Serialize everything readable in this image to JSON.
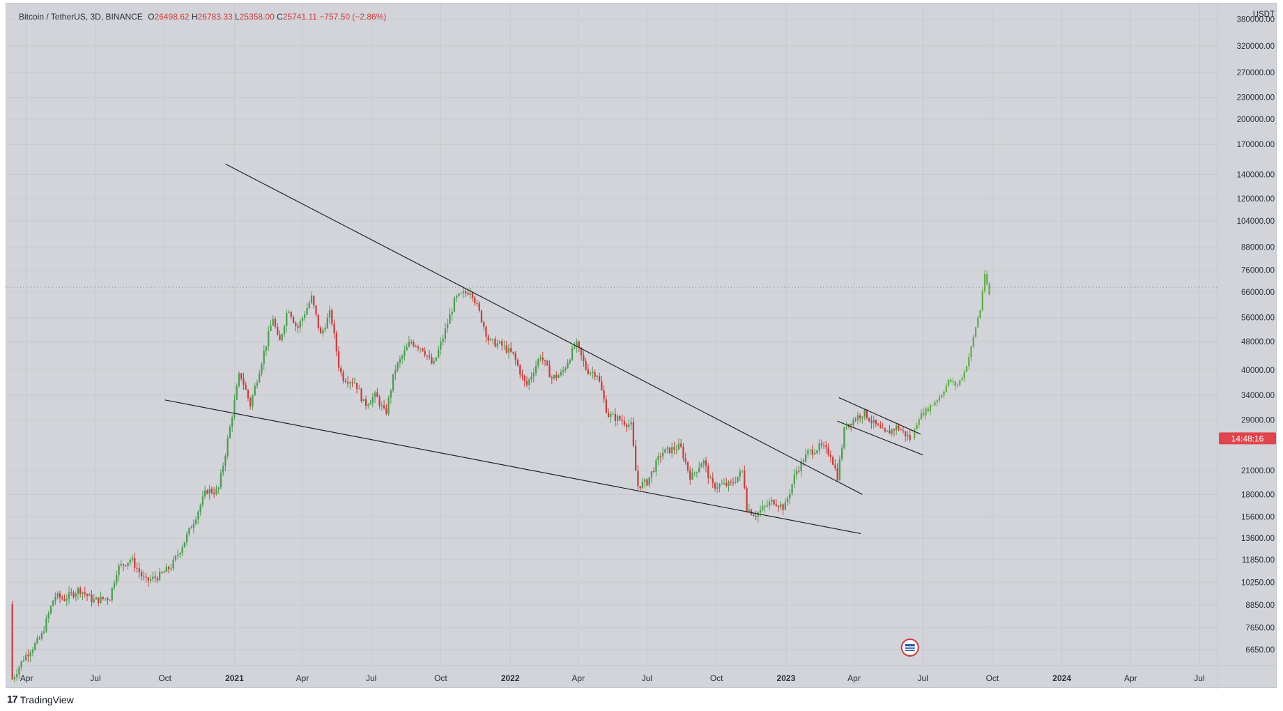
{
  "legend": {
    "symbol": "Bitcoin / TetherUS, 3D, BINANCE",
    "open_label": "O",
    "open": "26498.62",
    "high_label": "H",
    "high": "26783.33",
    "low_label": "L",
    "low": "25358.00",
    "close_label": "C",
    "close": "25741.11",
    "change": "−757.50 (−2.86%)"
  },
  "footer": {
    "brand": "TradingView",
    "logo_glyph": "17"
  },
  "colors": {
    "up": "#4a9e4f",
    "down": "#d23a3a",
    "projection": "#5fae47",
    "background": "#d2d4d9",
    "countdown_bg": "#e0454b"
  },
  "chart_data": {
    "type": "candlestick",
    "title": "Bitcoin / TetherUS, 3D, BINANCE",
    "currency_label": "USDT",
    "y_scale": "log",
    "y_ticks": [
      "380000.00",
      "320000.00",
      "270000.00",
      "230000.00",
      "200000.00",
      "170000.00",
      "140000.00",
      "120000.00",
      "104000.00",
      "88000.00",
      "76000.00",
      "66000.00",
      "56000.00",
      "48000.00",
      "40000.00",
      "34000.00",
      "29000.00",
      "21000.00",
      "18000.00",
      "15600.00",
      "13600.00",
      "11850.00",
      "10250.00",
      "8850.00",
      "7650.00",
      "6650.00"
    ],
    "ylim": [
      6000,
      420000
    ],
    "x_ticks": [
      "Apr",
      "Jul",
      "Oct",
      "2021",
      "Apr",
      "Jul",
      "Oct",
      "2022",
      "Apr",
      "Jul",
      "Oct",
      "2023",
      "Apr",
      "Jul",
      "Oct",
      "2024",
      "Apr",
      "Jul"
    ],
    "x_tick_dates": [
      "2020-04-01",
      "2020-07-01",
      "2020-10-01",
      "2021-01-01",
      "2021-04-01",
      "2021-07-01",
      "2021-10-01",
      "2022-01-01",
      "2022-04-01",
      "2022-07-01",
      "2022-10-01",
      "2023-01-01",
      "2023-04-01",
      "2023-07-01",
      "2023-10-01",
      "2024-01-01",
      "2024-04-01",
      "2024-07-01"
    ],
    "xlim": [
      "2020-03-05",
      "2024-07-25"
    ],
    "last_price": 25741.11,
    "countdown": "14:48:16",
    "current_price_line": 68000,
    "price_path": [
      [
        "2020-03-10",
        8900
      ],
      [
        "2020-03-13",
        5500
      ],
      [
        "2020-03-28",
        6300
      ],
      [
        "2020-04-20",
        7200
      ],
      [
        "2020-05-08",
        9400
      ],
      [
        "2020-05-20",
        9200
      ],
      [
        "2020-06-10",
        9800
      ],
      [
        "2020-06-28",
        9100
      ],
      [
        "2020-07-20",
        9300
      ],
      [
        "2020-07-30",
        11200
      ],
      [
        "2020-08-17",
        11900
      ],
      [
        "2020-09-05",
        10300
      ],
      [
        "2020-09-25",
        10700
      ],
      [
        "2020-10-10",
        11400
      ],
      [
        "2020-10-25",
        13100
      ],
      [
        "2020-11-10",
        15500
      ],
      [
        "2020-11-25",
        18500
      ],
      [
        "2020-12-10",
        18300
      ],
      [
        "2020-12-20",
        23500
      ],
      [
        "2021-01-08",
        39500
      ],
      [
        "2021-01-22",
        32000
      ],
      [
        "2021-02-08",
        44000
      ],
      [
        "2021-02-21",
        56000
      ],
      [
        "2021-03-01",
        47000
      ],
      [
        "2021-03-13",
        60000
      ],
      [
        "2021-03-25",
        52000
      ],
      [
        "2021-04-13",
        63500
      ],
      [
        "2021-04-25",
        50000
      ],
      [
        "2021-05-08",
        58000
      ],
      [
        "2021-05-20",
        40000
      ],
      [
        "2021-05-25",
        38000
      ],
      [
        "2021-06-10",
        37000
      ],
      [
        "2021-06-22",
        32000
      ],
      [
        "2021-07-07",
        34000
      ],
      [
        "2021-07-20",
        30000
      ],
      [
        "2021-08-01",
        40000
      ],
      [
        "2021-08-22",
        48000
      ],
      [
        "2021-09-07",
        46000
      ],
      [
        "2021-09-21",
        41000
      ],
      [
        "2021-10-05",
        50000
      ],
      [
        "2021-10-20",
        63000
      ],
      [
        "2021-11-10",
        67000
      ],
      [
        "2021-11-22",
        57000
      ],
      [
        "2021-12-04",
        48000
      ],
      [
        "2021-12-20",
        47000
      ],
      [
        "2022-01-05",
        44000
      ],
      [
        "2022-01-22",
        36000
      ],
      [
        "2022-02-10",
        44000
      ],
      [
        "2022-02-25",
        38000
      ],
      [
        "2022-03-10",
        39000
      ],
      [
        "2022-03-29",
        47500
      ],
      [
        "2022-04-12",
        40000
      ],
      [
        "2022-04-26",
        39000
      ],
      [
        "2022-05-10",
        30000
      ],
      [
        "2022-05-28",
        29000
      ],
      [
        "2022-06-10",
        28000
      ],
      [
        "2022-06-18",
        19000
      ],
      [
        "2022-07-01",
        19500
      ],
      [
        "2022-07-20",
        23500
      ],
      [
        "2022-08-14",
        24500
      ],
      [
        "2022-08-28",
        20000
      ],
      [
        "2022-09-13",
        22500
      ],
      [
        "2022-09-25",
        19000
      ],
      [
        "2022-10-20",
        19200
      ],
      [
        "2022-11-05",
        21000
      ],
      [
        "2022-11-10",
        16500
      ],
      [
        "2022-11-21",
        15800
      ],
      [
        "2022-12-15",
        17300
      ],
      [
        "2022-12-30",
        16500
      ],
      [
        "2023-01-14",
        20800
      ],
      [
        "2023-01-30",
        23500
      ],
      [
        "2023-02-16",
        24500
      ],
      [
        "2023-03-01",
        23300
      ],
      [
        "2023-03-10",
        20200
      ],
      [
        "2023-03-20",
        28000
      ],
      [
        "2023-04-14",
        30500
      ],
      [
        "2023-04-26",
        28500
      ],
      [
        "2023-05-12",
        26500
      ],
      [
        "2023-05-28",
        27800
      ],
      [
        "2023-06-14",
        25741.11
      ]
    ],
    "projection_path": [
      [
        "2023-06-17",
        25800
      ],
      [
        "2023-06-25",
        29500
      ],
      [
        "2023-07-10",
        31500
      ],
      [
        "2023-07-25",
        34000
      ],
      [
        "2023-08-05",
        37500
      ],
      [
        "2023-08-15",
        36000
      ],
      [
        "2023-08-25",
        39500
      ],
      [
        "2023-09-02",
        45000
      ],
      [
        "2023-09-10",
        54000
      ],
      [
        "2023-09-16",
        60000
      ],
      [
        "2023-09-20",
        74000
      ],
      [
        "2023-09-25",
        68000
      ],
      [
        "2023-09-28",
        63000
      ]
    ],
    "trendlines": [
      {
        "from": [
          "2020-12-20",
          150000
        ],
        "to": [
          "2023-04-12",
          18000
        ]
      },
      {
        "from": [
          "2020-10-01",
          33000
        ],
        "to": [
          "2023-04-10",
          14000
        ]
      },
      {
        "from": [
          "2023-03-12",
          33500
        ],
        "to": [
          "2023-06-28",
          26500
        ]
      },
      {
        "from": [
          "2023-03-10",
          28800
        ],
        "to": [
          "2023-07-01",
          23200
        ]
      }
    ],
    "grid": true,
    "legend_position": "top-left"
  }
}
